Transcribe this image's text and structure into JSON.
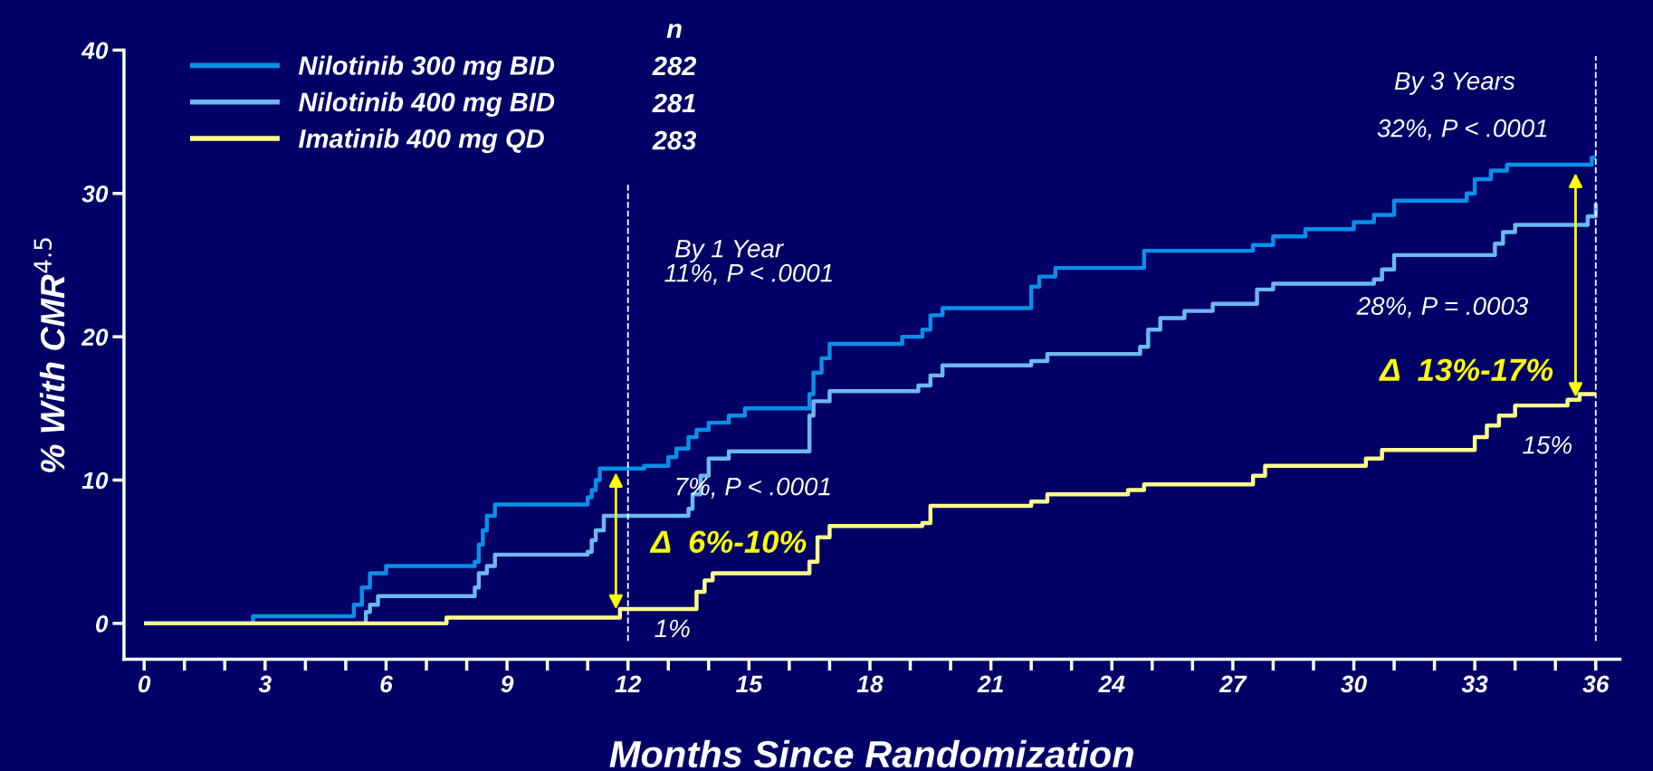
{
  "chart_data": {
    "type": "step",
    "xlabel": "Months Since Randomization",
    "ylabel": "% With CMR$^{4.5}$",
    "xlim": [
      -0.5,
      36.6
    ],
    "ylim": [
      -2.5,
      40
    ],
    "xticks": [
      0,
      3,
      6,
      9,
      12,
      15,
      18,
      21,
      24,
      27,
      30,
      33,
      36
    ],
    "yticks": [
      0,
      10,
      20,
      30,
      40
    ],
    "legend": "top left",
    "grid": false,
    "marker": "none",
    "line_style": "solid",
    "series": [
      {
        "name": "Nilotinib 300 mg BID",
        "color": "#0a8fe8",
        "x": [
          0,
          2.7,
          5.2,
          5.4,
          5.6,
          6.0,
          8.2,
          8.3,
          8.4,
          8.5,
          8.7,
          11.0,
          11.1,
          11.2,
          11.3,
          12.4,
          13.0,
          13.2,
          13.5,
          13.7,
          14.0,
          14.5,
          14.9,
          16.5,
          16.6,
          16.8,
          17.0,
          18.8,
          19.3,
          19.5,
          19.8,
          22.0,
          22.2,
          22.6,
          24.8,
          27.5,
          28.0,
          28.8,
          30.0,
          30.5,
          31.0,
          32.8,
          33.0,
          33.4,
          33.8,
          35.9,
          36.0
        ],
        "values": [
          0,
          0.5,
          1.3,
          2.5,
          3.5,
          4.0,
          4.3,
          5.5,
          6.5,
          7.5,
          8.3,
          8.8,
          9.3,
          10.0,
          10.8,
          11.0,
          11.6,
          12.2,
          13.0,
          13.5,
          14.0,
          14.5,
          15.0,
          16.0,
          17.5,
          18.5,
          19.5,
          20.0,
          20.5,
          21.5,
          22.0,
          23.5,
          24.2,
          24.8,
          26.0,
          26.4,
          27.0,
          27.5,
          28.0,
          28.5,
          29.5,
          30.0,
          31.0,
          31.6,
          32.0,
          32.5,
          32.5
        ]
      },
      {
        "name": "Nilotinib 400 mg BID",
        "color": "#6cb8f0",
        "x": [
          0,
          5.5,
          5.6,
          5.8,
          8.2,
          8.3,
          8.5,
          8.7,
          11.0,
          11.1,
          11.2,
          11.4,
          13.5,
          13.6,
          13.8,
          14.0,
          14.5,
          16.5,
          16.6,
          17.0,
          19.2,
          19.5,
          19.8,
          22.0,
          22.4,
          24.7,
          24.9,
          25.2,
          25.8,
          26.5,
          27.6,
          28.0,
          30.5,
          30.7,
          31.0,
          33.5,
          33.7,
          34.0,
          35.8,
          36.0
        ],
        "values": [
          0,
          0.8,
          1.3,
          1.9,
          2.5,
          3.5,
          4.0,
          4.8,
          5.0,
          5.8,
          6.5,
          7.5,
          8.0,
          9.0,
          10.3,
          11.5,
          12.0,
          14.5,
          15.5,
          16.2,
          16.6,
          17.3,
          18.0,
          18.3,
          18.8,
          19.3,
          20.5,
          21.3,
          21.8,
          22.3,
          23.3,
          23.7,
          24.0,
          24.7,
          25.7,
          26.5,
          27.3,
          27.8,
          28.4,
          29.3
        ]
      },
      {
        "name": "Imatinib 400 mg QD",
        "color": "#ffff8c",
        "x": [
          0,
          7.5,
          11.8,
          13.7,
          13.9,
          14.1,
          16.5,
          16.7,
          17.0,
          19.3,
          19.5,
          22.0,
          22.4,
          24.4,
          24.8,
          27.5,
          27.8,
          30.3,
          30.7,
          33.0,
          33.3,
          33.6,
          34.0,
          35.3,
          35.6,
          36.0
        ],
        "values": [
          0,
          0.4,
          1.0,
          2.2,
          3.0,
          3.5,
          4.3,
          6.0,
          6.8,
          7.0,
          8.2,
          8.5,
          9.0,
          9.3,
          9.7,
          10.3,
          11.0,
          11.5,
          12.1,
          13.0,
          13.8,
          14.5,
          15.2,
          15.6,
          16.0,
          16.0
        ]
      }
    ],
    "ref_lines": [
      {
        "axis": "x",
        "value": 12,
        "label": null,
        "color": "#ffffff",
        "line_style": "dashed"
      },
      {
        "axis": "x",
        "value": 36,
        "label": null,
        "color": "#ffffff",
        "line_style": "dashed"
      }
    ],
    "annotations": [
      "By 1 Year",
      "11%, P < .0001",
      "7%, P < .0001",
      "1%",
      "Δ  6%-10%",
      "By 3 Years",
      "32%, P < .0001",
      "28%, P = .0003",
      "15%",
      "Δ  13%-17%",
      "n",
      "282",
      "281",
      "283"
    ]
  }
}
